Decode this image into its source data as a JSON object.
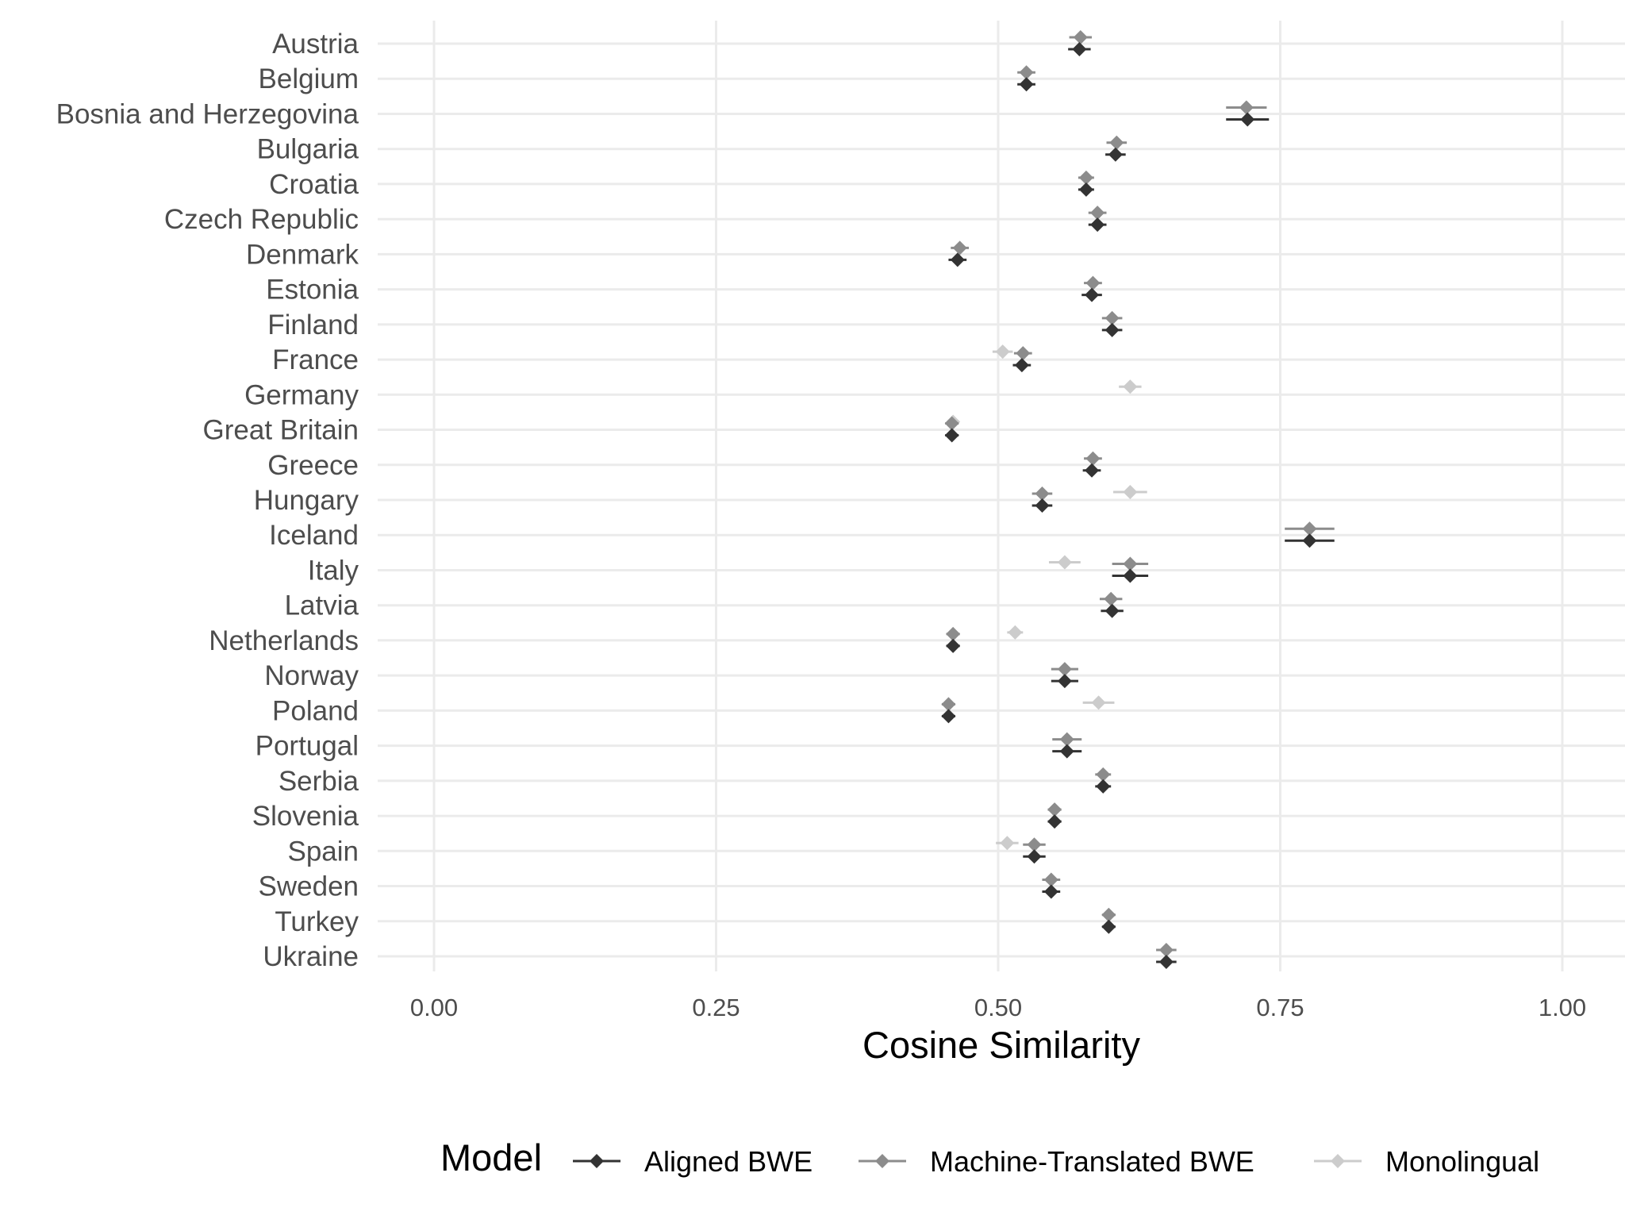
{
  "chart_data": {
    "type": "scatter",
    "xlabel": "Cosine Similarity",
    "xlim": [
      -0.05,
      1.05
    ],
    "x_ticks": [
      0.0,
      0.25,
      0.5,
      0.75,
      1.0
    ],
    "x_tick_labels": [
      "0.00",
      "0.25",
      "0.50",
      "0.75",
      "1.00"
    ],
    "grid": true,
    "legend": {
      "title": "Model",
      "position": "bottom"
    },
    "categories": [
      "Austria",
      "Belgium",
      "Bosnia and Herzegovina",
      "Bulgaria",
      "Croatia",
      "Czech Republic",
      "Denmark",
      "Estonia",
      "Finland",
      "France",
      "Germany",
      "Great Britain",
      "Greece",
      "Hungary",
      "Iceland",
      "Italy",
      "Latvia",
      "Netherlands",
      "Norway",
      "Poland",
      "Portugal",
      "Serbia",
      "Slovenia",
      "Spain",
      "Sweden",
      "Turkey",
      "Ukraine"
    ],
    "series": [
      {
        "name": "Aligned BWE",
        "color": "#333333",
        "values": [
          0.572,
          0.525,
          0.721,
          0.604,
          0.578,
          0.588,
          0.464,
          0.583,
          0.601,
          0.521,
          null,
          0.459,
          0.583,
          0.539,
          0.776,
          0.617,
          0.601,
          0.46,
          0.559,
          0.456,
          0.561,
          0.593,
          0.55,
          0.532,
          0.547,
          0.598,
          0.649
        ],
        "err": [
          0.01,
          0.008,
          0.019,
          0.009,
          0.007,
          0.008,
          0.008,
          0.009,
          0.009,
          0.008,
          null,
          0.006,
          0.008,
          0.009,
          0.022,
          0.016,
          0.01,
          0.006,
          0.012,
          0.006,
          0.013,
          0.007,
          0.006,
          0.01,
          0.008,
          0.006,
          0.009
        ]
      },
      {
        "name": "Machine-Translated BWE",
        "color": "#8c8c8c",
        "values": [
          0.573,
          0.525,
          0.72,
          0.605,
          0.578,
          0.588,
          0.466,
          0.584,
          0.601,
          0.522,
          null,
          0.459,
          0.584,
          0.539,
          0.776,
          0.617,
          0.6,
          0.46,
          0.559,
          0.456,
          0.561,
          0.593,
          0.55,
          0.532,
          0.547,
          0.598,
          0.649
        ],
        "err": [
          0.01,
          0.008,
          0.018,
          0.009,
          0.007,
          0.008,
          0.008,
          0.008,
          0.009,
          0.008,
          null,
          0.006,
          0.008,
          0.009,
          0.022,
          0.016,
          0.01,
          0.006,
          0.012,
          0.006,
          0.013,
          0.007,
          0.006,
          0.01,
          0.008,
          0.006,
          0.009
        ]
      },
      {
        "name": "Monolingual",
        "color": "#cccccc",
        "values": [
          null,
          null,
          null,
          null,
          null,
          null,
          null,
          null,
          null,
          0.504,
          0.617,
          0.46,
          null,
          0.617,
          null,
          0.559,
          null,
          0.515,
          null,
          0.589,
          null,
          null,
          null,
          0.508,
          null,
          null,
          null
        ],
        "err": [
          null,
          null,
          null,
          null,
          null,
          null,
          null,
          null,
          null,
          0.009,
          0.01,
          0.005,
          null,
          0.015,
          null,
          0.014,
          null,
          0.007,
          null,
          0.014,
          null,
          null,
          null,
          0.01,
          null,
          null,
          null
        ]
      }
    ]
  }
}
